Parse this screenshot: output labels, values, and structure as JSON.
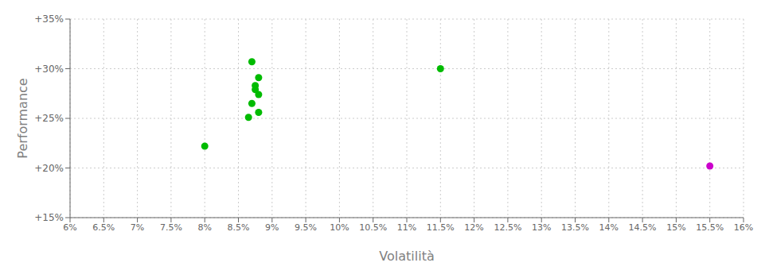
{
  "chart_data": {
    "type": "scatter",
    "xlabel": "Volatilità",
    "ylabel": "Performance",
    "xlim": [
      0.06,
      0.16
    ],
    "ylim": [
      0.15,
      0.35
    ],
    "xticks": [
      {
        "value": 0.06,
        "label": "6%"
      },
      {
        "value": 0.065,
        "label": "6.5%"
      },
      {
        "value": 0.07,
        "label": "7%"
      },
      {
        "value": 0.075,
        "label": "7.5%"
      },
      {
        "value": 0.08,
        "label": "8%"
      },
      {
        "value": 0.085,
        "label": "8.5%"
      },
      {
        "value": 0.09,
        "label": "9%"
      },
      {
        "value": 0.095,
        "label": "9.5%"
      },
      {
        "value": 0.1,
        "label": "10%"
      },
      {
        "value": 0.105,
        "label": "10.5%"
      },
      {
        "value": 0.11,
        "label": "11%"
      },
      {
        "value": 0.115,
        "label": "11.5%"
      },
      {
        "value": 0.12,
        "label": "12%"
      },
      {
        "value": 0.125,
        "label": "12.5%"
      },
      {
        "value": 0.13,
        "label": "13%"
      },
      {
        "value": 0.135,
        "label": "13.5%"
      },
      {
        "value": 0.14,
        "label": "14%"
      },
      {
        "value": 0.145,
        "label": "14.5%"
      },
      {
        "value": 0.15,
        "label": "15%"
      },
      {
        "value": 0.155,
        "label": "15.5%"
      },
      {
        "value": 0.16,
        "label": "16%"
      }
    ],
    "yticks": [
      {
        "value": 0.15,
        "label": "+15%"
      },
      {
        "value": 0.2,
        "label": "+20%"
      },
      {
        "value": 0.25,
        "label": "+25%"
      },
      {
        "value": 0.3,
        "label": "+30%"
      },
      {
        "value": 0.35,
        "label": "+35%"
      }
    ],
    "grid": true,
    "marker": "circle",
    "series": [
      {
        "color": "#00bb00",
        "x": [
          0.087,
          0.088,
          0.0875,
          0.0875,
          0.088,
          0.087,
          0.088,
          0.0865,
          0.08,
          0.115
        ],
        "values": [
          0.307,
          0.291,
          0.283,
          0.279,
          0.274,
          0.265,
          0.256,
          0.251,
          0.222,
          0.3
        ]
      },
      {
        "color": "#cc00cc",
        "x": [
          0.155
        ],
        "values": [
          0.202
        ]
      }
    ]
  }
}
